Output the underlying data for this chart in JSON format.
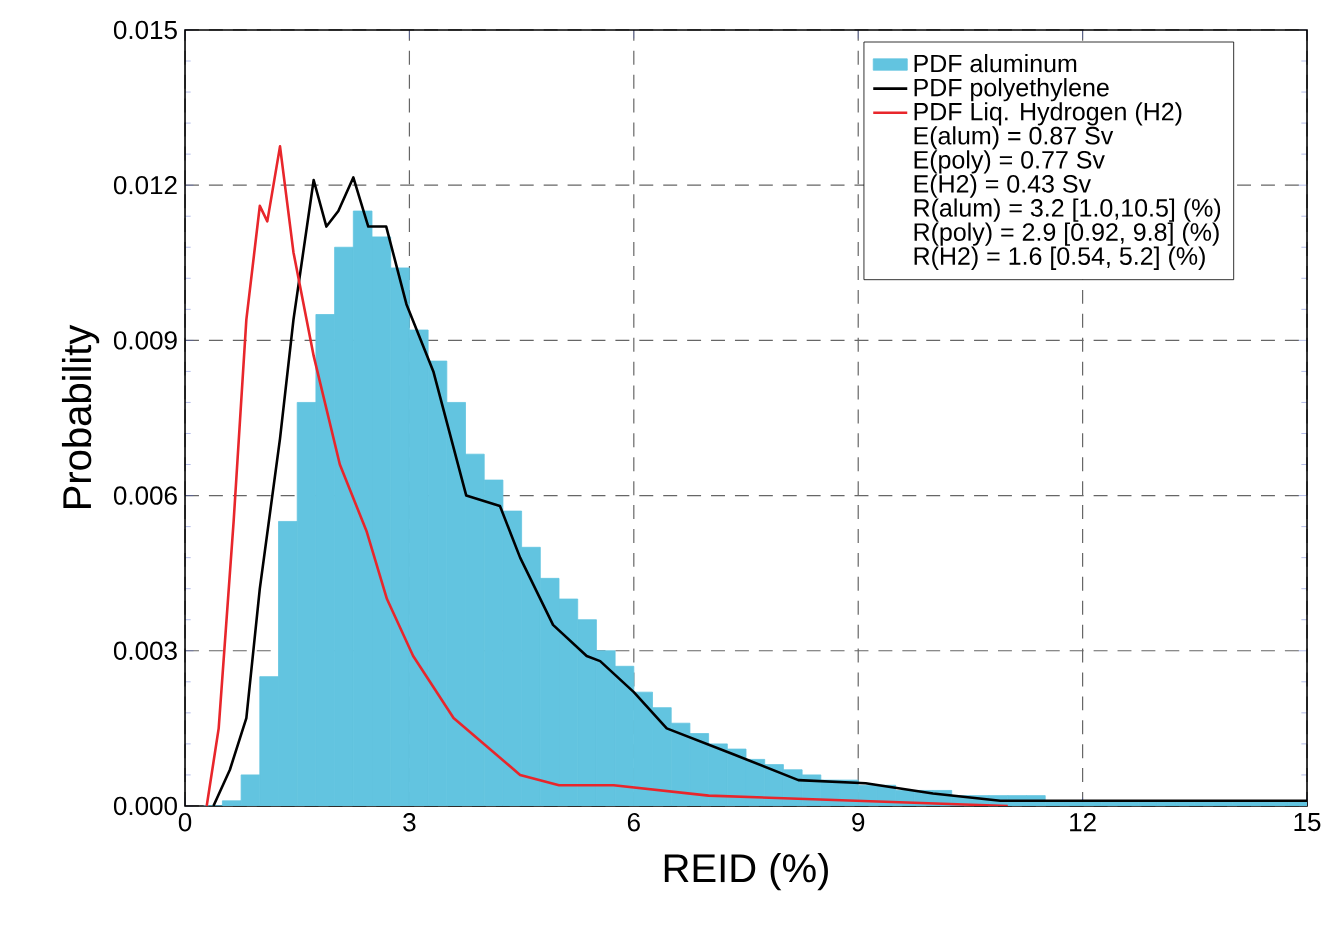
{
  "chart_data": {
    "type": "histogram",
    "xlabel": "REID (%)",
    "ylabel": "Probability",
    "xlim": [
      0,
      15
    ],
    "ylim": [
      0,
      0.015
    ],
    "xticks": [
      0,
      3,
      6,
      9,
      12,
      15
    ],
    "yticks": [
      {
        "value": 0,
        "label": "0.000"
      },
      {
        "value": 0.003,
        "label": "0.003"
      },
      {
        "value": 0.006,
        "label": "0.006"
      },
      {
        "value": 0.009,
        "label": "0.009"
      },
      {
        "value": 0.012,
        "label": "0.012"
      },
      {
        "value": 0.015,
        "label": "0.015"
      }
    ],
    "grid": true,
    "legend": "top right",
    "series": [
      {
        "name": "PDF aluminum",
        "color": "#62c4e0",
        "bins": [
          0.25,
          0.5,
          0.75,
          1.0,
          1.25,
          1.5,
          1.75,
          2.0,
          2.25,
          2.5,
          2.75,
          3.0,
          3.25,
          3.5,
          3.75,
          4.0,
          4.25,
          4.5,
          4.75,
          5.0,
          5.25,
          5.5,
          5.75,
          6.0,
          6.25,
          6.5,
          6.75,
          7.0,
          7.25,
          7.5,
          7.75,
          8.0,
          8.25,
          8.5,
          8.75,
          9.0,
          9.25,
          9.5,
          9.75,
          10.0,
          10.25,
          10.5,
          10.75,
          11.0,
          11.25,
          11.5,
          11.75,
          12.0,
          12.25,
          12.5,
          12.75,
          13.0,
          13.25,
          13.5,
          13.75,
          14.0,
          14.25,
          14.5,
          14.75,
          15.0
        ],
        "values": [
          0,
          0.0001,
          0.0006,
          0.0025,
          0.0055,
          0.0078,
          0.0095,
          0.0108,
          0.0115,
          0.011,
          0.0104,
          0.0092,
          0.0086,
          0.0078,
          0.0068,
          0.0063,
          0.0057,
          0.005,
          0.0044,
          0.004,
          0.0036,
          0.003,
          0.0027,
          0.0022,
          0.0019,
          0.0016,
          0.0014,
          0.0012,
          0.0011,
          0.0009,
          0.0008,
          0.0007,
          0.0006,
          0.0005,
          0.0005,
          0.0004,
          0.0004,
          0.0003,
          0.0003,
          0.0003,
          0.0002,
          0.0002,
          0.0002,
          0.0002,
          0.0002,
          0.0001,
          0.0001,
          0.0001,
          0.0001,
          0.0001,
          0.0001,
          0.0001,
          0.0001,
          0.0001,
          0.0001,
          0.0001,
          0.0001,
          0.0001,
          0.0001
        ]
      },
      {
        "name": "PDF polyethylene",
        "type": "line",
        "color": "#000000",
        "x": [
          0.38,
          0.6,
          0.82,
          1.0,
          1.27,
          1.45,
          1.58,
          1.72,
          1.89,
          2.05,
          2.25,
          2.45,
          2.69,
          2.96,
          3.32,
          3.76,
          4.21,
          4.48,
          4.92,
          5.37,
          5.55,
          6.0,
          6.44,
          7.33,
          8.2,
          9.1,
          10.0,
          10.9,
          12.0,
          13.0,
          14.0,
          15.0
        ],
        "values": [
          0,
          0.0007,
          0.0017,
          0.0042,
          0.0071,
          0.0094,
          0.0107,
          0.0121,
          0.0112,
          0.0115,
          0.01215,
          0.0112,
          0.0112,
          0.0097,
          0.0084,
          0.006,
          0.0058,
          0.0048,
          0.0035,
          0.0029,
          0.0028,
          0.0022,
          0.0015,
          0.001,
          0.0005,
          0.00044,
          0.00024,
          0.0001,
          0.0001,
          0.0001,
          0.0001,
          0.0001
        ]
      },
      {
        "name": "PDF Liq. Hydrogen (H2)",
        "type": "line",
        "color": "#e8262b",
        "x": [
          0.29,
          0.45,
          0.65,
          0.82,
          1.0,
          1.1,
          1.27,
          1.45,
          1.72,
          2.07,
          2.43,
          2.7,
          3.05,
          3.59,
          4.48,
          5.0,
          5.73,
          7.0,
          9.0,
          11.0
        ],
        "values": [
          0,
          0.0015,
          0.0055,
          0.0094,
          0.0116,
          0.0113,
          0.01275,
          0.0107,
          0.0087,
          0.0066,
          0.0053,
          0.004,
          0.0029,
          0.0017,
          0.0006,
          0.0004,
          0.0004,
          0.0002,
          0.0001,
          0
        ]
      }
    ],
    "annotations": [
      "E(alum) = 0.87 Sv",
      "E(poly)  = 0.77 Sv",
      "E(H2)    = 0.43 Sv",
      "R(alum) = 3.2 [1.0,10.5] (%)",
      "R(poly)  = 2.9 [0.92, 9.8] (%)",
      "R(H2)    = 1.6 [0.54, 5.2] (%)"
    ]
  }
}
